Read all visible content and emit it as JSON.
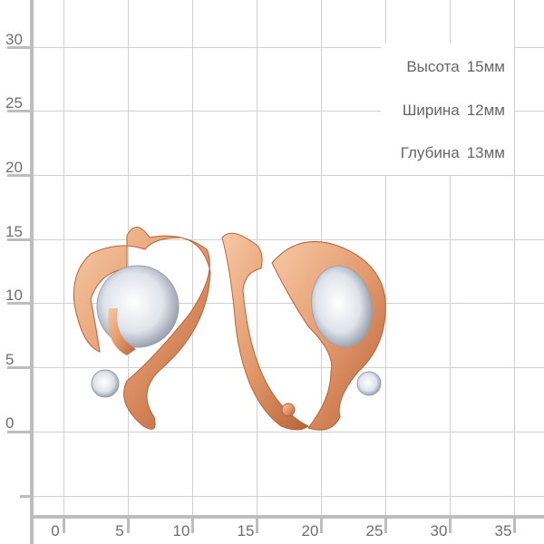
{
  "y_axis": {
    "labels": [
      "30",
      "25",
      "20",
      "15",
      "10",
      "5",
      "0"
    ]
  },
  "x_axis": {
    "labels": [
      "0",
      "5",
      "10",
      "15",
      "20",
      "25",
      "30",
      "35"
    ]
  },
  "dimensions": [
    {
      "label": "Высота",
      "value": "15мм"
    },
    {
      "label": "Ширина",
      "value": "12мм"
    },
    {
      "label": "Глубина",
      "value": "13мм"
    }
  ],
  "colors": {
    "grid": "#d0d0d0",
    "axis": "#bdbdbd",
    "gold": "#e8a178",
    "gold_dark": "#b8623a",
    "stone": "#dfe3ea"
  },
  "product": {
    "image": "rose-gold-earrings-with-cubic-zirconia"
  }
}
